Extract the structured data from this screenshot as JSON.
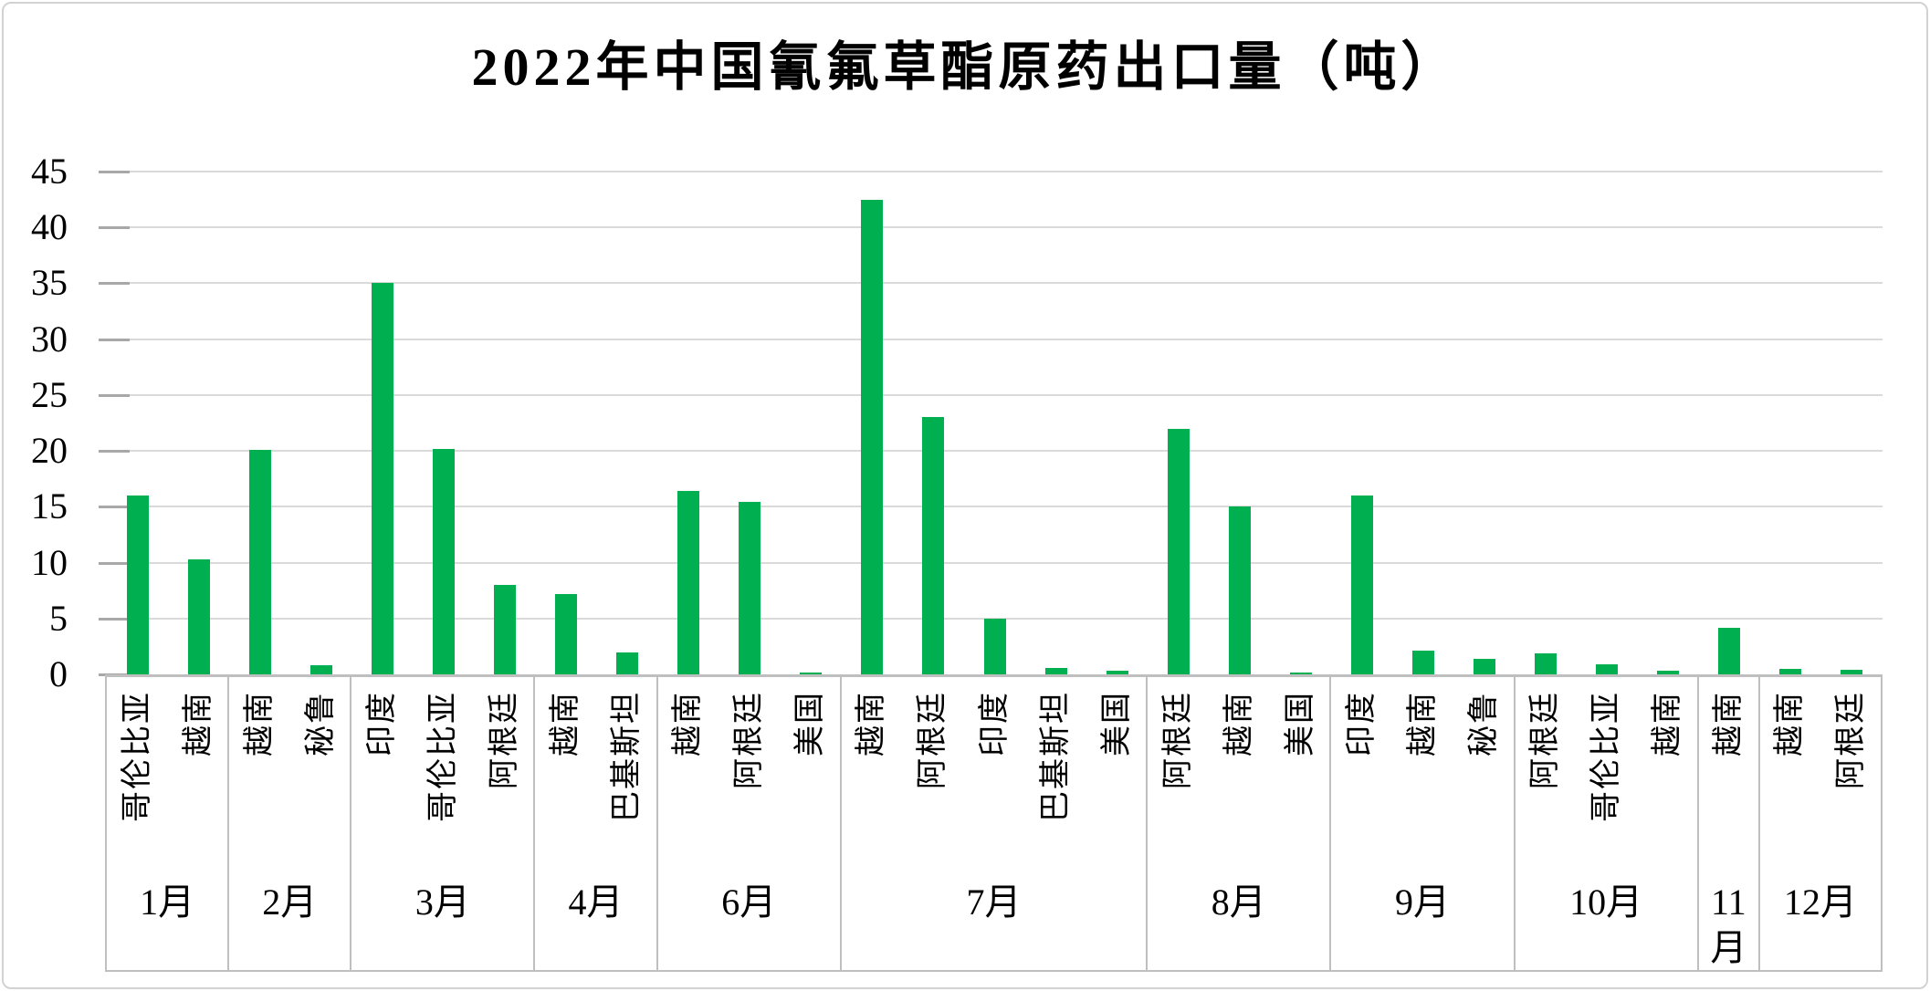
{
  "title": "2022年中国氰氟草酯原药出口量（吨）",
  "colors": {
    "bar": "#00B050",
    "gridline": "#DADADA",
    "tick": "#A8A8A8",
    "table_border": "#BFBFBF",
    "figure_border": "#D2D2D2",
    "background": "#FFFFFF",
    "text": "#000000"
  },
  "y_axis": {
    "min": 0,
    "max": 45,
    "step": 5,
    "tick_labels": [
      "0",
      "5",
      "10",
      "15",
      "20",
      "25",
      "30",
      "35",
      "40",
      "45"
    ]
  },
  "chart_data": {
    "type": "bar",
    "title": "2022年中国氰氟草酯原药出口量（吨）",
    "xlabel": "",
    "ylabel": "",
    "ylim": [
      0,
      45
    ],
    "ytick_step": 5,
    "grid": true,
    "legend_position": "none",
    "bar_color": "#00B050",
    "groups": [
      {
        "month": "1月",
        "items": [
          {
            "country": "哥伦比亚",
            "value": 16.0
          },
          {
            "country": "越南",
            "value": 10.3
          }
        ]
      },
      {
        "month": "2月",
        "items": [
          {
            "country": "越南",
            "value": 20.1
          },
          {
            "country": "秘鲁",
            "value": 0.8
          }
        ]
      },
      {
        "month": "3月",
        "items": [
          {
            "country": "印度",
            "value": 35.0
          },
          {
            "country": "哥伦比亚",
            "value": 20.2
          },
          {
            "country": "阿根廷",
            "value": 8.0
          }
        ]
      },
      {
        "month": "4月",
        "items": [
          {
            "country": "越南",
            "value": 7.2
          },
          {
            "country": "巴基斯坦",
            "value": 2.0
          }
        ]
      },
      {
        "month": "6月",
        "items": [
          {
            "country": "越南",
            "value": 16.4
          },
          {
            "country": "阿根廷",
            "value": 15.4
          },
          {
            "country": "美国",
            "value": 0.2
          }
        ]
      },
      {
        "month": "7月",
        "items": [
          {
            "country": "越南",
            "value": 42.5
          },
          {
            "country": "阿根廷",
            "value": 23.0
          },
          {
            "country": "印度",
            "value": 5.0
          },
          {
            "country": "巴基斯坦",
            "value": 0.6
          },
          {
            "country": "美国",
            "value": 0.3
          }
        ]
      },
      {
        "month": "8月",
        "items": [
          {
            "country": "阿根廷",
            "value": 22.0
          },
          {
            "country": "越南",
            "value": 15.0
          },
          {
            "country": "美国",
            "value": 0.15
          }
        ]
      },
      {
        "month": "9月",
        "items": [
          {
            "country": "印度",
            "value": 16.0
          },
          {
            "country": "越南",
            "value": 2.1
          },
          {
            "country": "秘鲁",
            "value": 1.4
          }
        ]
      },
      {
        "month": "10月",
        "items": [
          {
            "country": "阿根廷",
            "value": 1.9
          },
          {
            "country": "哥伦比亚",
            "value": 0.9
          },
          {
            "country": "越南",
            "value": 0.3
          }
        ]
      },
      {
        "month": "11月",
        "items": [
          {
            "country": "越南",
            "value": 4.2
          }
        ]
      },
      {
        "month": "12月",
        "items": [
          {
            "country": "越南",
            "value": 0.5
          },
          {
            "country": "阿根廷",
            "value": 0.4
          }
        ]
      }
    ]
  }
}
